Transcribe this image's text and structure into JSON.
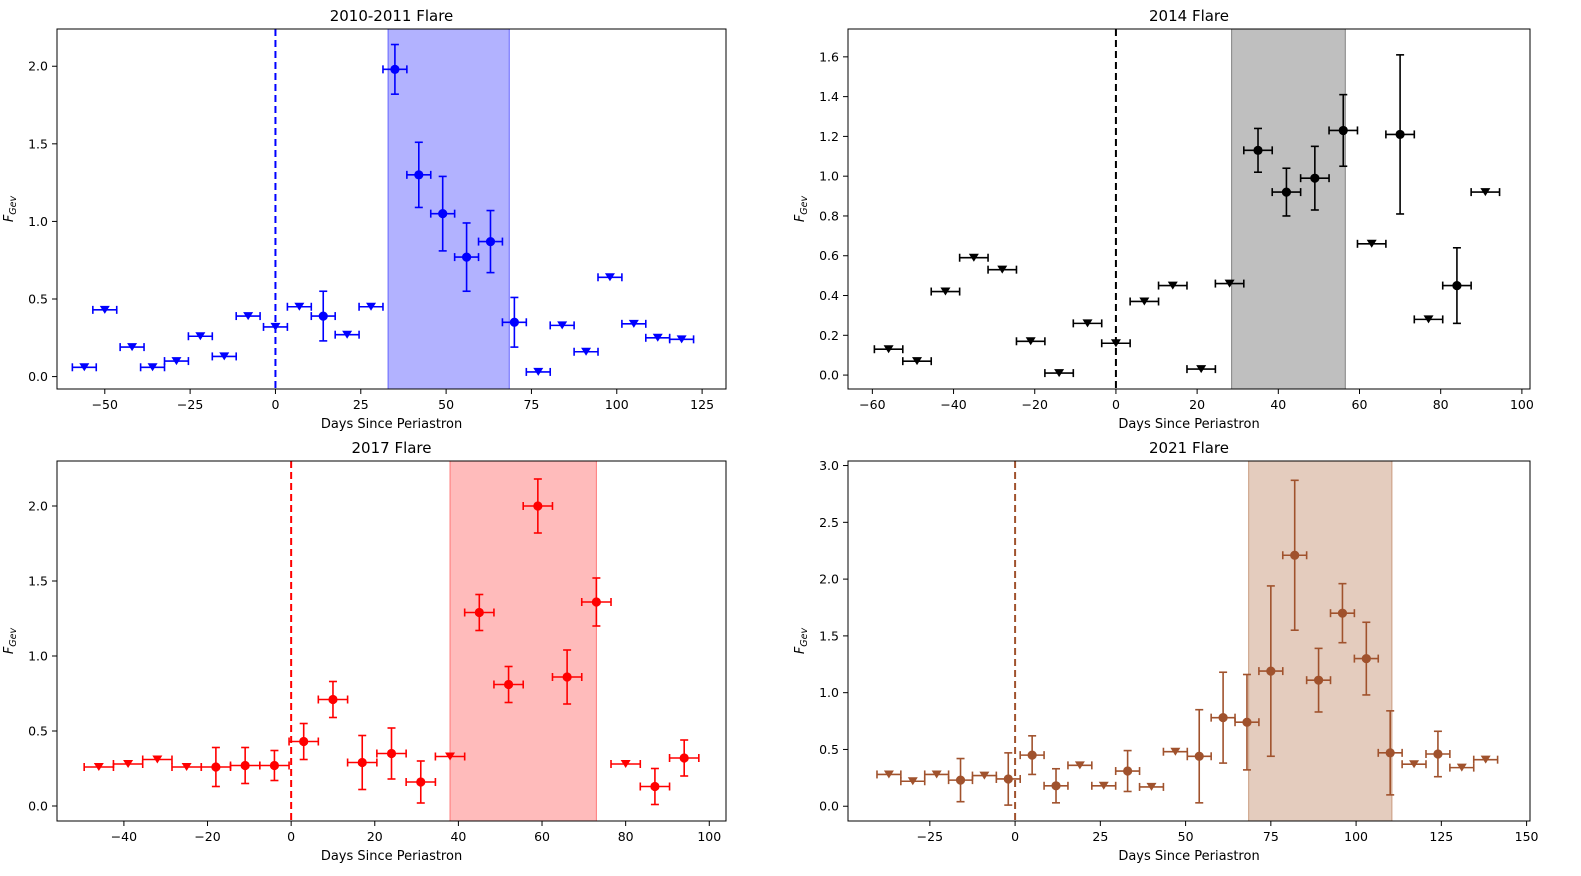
{
  "chart_data": [
    {
      "type": "scatter",
      "title": "2010-2011 Flare",
      "xlabel": "Days Since Periastron",
      "ylabel": "F_Gev",
      "color": "#0000ff",
      "shade_color": "#6666ff",
      "xlim": [
        -64,
        132
      ],
      "ylim": [
        -0.08,
        2.24
      ],
      "xticks": [
        -50,
        -25,
        0,
        25,
        50,
        75,
        100,
        125
      ],
      "xtick_labels": [
        "−50",
        "−25",
        "0",
        "25",
        "50",
        "75",
        "100",
        "125"
      ],
      "yticks": [
        0.0,
        0.5,
        1.0,
        1.5,
        2.0
      ],
      "ytick_labels": [
        "0.0",
        "0.5",
        "1.0",
        "1.5",
        "2.0"
      ],
      "periastron_line_x": 0,
      "flare_shade": [
        33,
        68.5
      ],
      "xerr": 3.5,
      "detections": [
        {
          "x": 35,
          "y": 1.98,
          "yerr": 0.16
        },
        {
          "x": 42,
          "y": 1.3,
          "yerr": 0.21
        },
        {
          "x": 49,
          "y": 1.05,
          "yerr": 0.24
        },
        {
          "x": 56,
          "y": 0.77,
          "yerr": 0.22
        },
        {
          "x": 63,
          "y": 0.87,
          "yerr": 0.2
        },
        {
          "x": 70,
          "y": 0.35,
          "yerr": 0.16
        },
        {
          "x": 14,
          "y": 0.39,
          "yerr": 0.16
        }
      ],
      "upper_limits": [
        {
          "x": -56,
          "y": 0.06
        },
        {
          "x": -50,
          "y": 0.43
        },
        {
          "x": -42,
          "y": 0.19
        },
        {
          "x": -36,
          "y": 0.06
        },
        {
          "x": -29,
          "y": 0.1
        },
        {
          "x": -22,
          "y": 0.26
        },
        {
          "x": -15,
          "y": 0.13
        },
        {
          "x": -8,
          "y": 0.39
        },
        {
          "x": 0,
          "y": 0.32
        },
        {
          "x": 7,
          "y": 0.45
        },
        {
          "x": 21,
          "y": 0.27
        },
        {
          "x": 28,
          "y": 0.45
        },
        {
          "x": 77,
          "y": 0.03
        },
        {
          "x": 84,
          "y": 0.33
        },
        {
          "x": 91,
          "y": 0.16
        },
        {
          "x": 98,
          "y": 0.64
        },
        {
          "x": 105,
          "y": 0.34
        },
        {
          "x": 112,
          "y": 0.25
        },
        {
          "x": 119,
          "y": 0.24
        }
      ]
    },
    {
      "type": "scatter",
      "title": "2014 Flare",
      "xlabel": "Days Since Periastron",
      "ylabel": "F_Gev",
      "color": "#000000",
      "shade_color": "#808080",
      "xlim": [
        -66,
        102
      ],
      "ylim": [
        -0.07,
        1.74
      ],
      "xticks": [
        -60,
        -40,
        -20,
        0,
        20,
        40,
        60,
        80,
        100
      ],
      "xtick_labels": [
        "−60",
        "−40",
        "−20",
        "0",
        "20",
        "40",
        "60",
        "80",
        "100"
      ],
      "yticks": [
        0.0,
        0.2,
        0.4,
        0.6,
        0.8,
        1.0,
        1.2,
        1.4,
        1.6
      ],
      "ytick_labels": [
        "0.0",
        "0.2",
        "0.4",
        "0.6",
        "0.8",
        "1.0",
        "1.2",
        "1.4",
        "1.6"
      ],
      "periastron_line_x": 0,
      "flare_shade": [
        28.5,
        56.5
      ],
      "xerr": 3.5,
      "detections": [
        {
          "x": 35,
          "y": 1.13,
          "yerr": 0.11
        },
        {
          "x": 42,
          "y": 0.92,
          "yerr": 0.12
        },
        {
          "x": 49,
          "y": 0.99,
          "yerr": 0.16
        },
        {
          "x": 56,
          "y": 1.23,
          "yerr": 0.18
        },
        {
          "x": 70,
          "y": 1.21,
          "yerr": 0.4
        },
        {
          "x": 84,
          "y": 0.45,
          "yerr": 0.19
        }
      ],
      "upper_limits": [
        {
          "x": -56,
          "y": 0.13
        },
        {
          "x": -49,
          "y": 0.07
        },
        {
          "x": -42,
          "y": 0.42
        },
        {
          "x": -35,
          "y": 0.59
        },
        {
          "x": -28,
          "y": 0.53
        },
        {
          "x": -21,
          "y": 0.17
        },
        {
          "x": -14,
          "y": 0.01
        },
        {
          "x": -7,
          "y": 0.26
        },
        {
          "x": 0,
          "y": 0.16
        },
        {
          "x": 7,
          "y": 0.37
        },
        {
          "x": 14,
          "y": 0.45
        },
        {
          "x": 21,
          "y": 0.03
        },
        {
          "x": 28,
          "y": 0.46
        },
        {
          "x": 63,
          "y": 0.66
        },
        {
          "x": 77,
          "y": 0.28
        },
        {
          "x": 91,
          "y": 0.92
        }
      ]
    },
    {
      "type": "scatter",
      "title": "2017 Flare",
      "xlabel": "Days Since Periastron",
      "ylabel": "F_Gev",
      "color": "#ff0000",
      "shade_color": "#ff7777",
      "xlim": [
        -56,
        104
      ],
      "ylim": [
        -0.1,
        2.3
      ],
      "xticks": [
        -40,
        -20,
        0,
        20,
        40,
        60,
        80,
        100
      ],
      "xtick_labels": [
        "−40",
        "−20",
        "0",
        "20",
        "40",
        "60",
        "80",
        "100"
      ],
      "yticks": [
        0.0,
        0.5,
        1.0,
        1.5,
        2.0
      ],
      "ytick_labels": [
        "0.0",
        "0.5",
        "1.0",
        "1.5",
        "2.0"
      ],
      "periastron_line_x": 0,
      "flare_shade": [
        38,
        73
      ],
      "xerr": 3.5,
      "detections": [
        {
          "x": -18,
          "y": 0.26,
          "yerr": 0.13
        },
        {
          "x": -11,
          "y": 0.27,
          "yerr": 0.12
        },
        {
          "x": -4,
          "y": 0.27,
          "yerr": 0.1
        },
        {
          "x": 3,
          "y": 0.43,
          "yerr": 0.12
        },
        {
          "x": 10,
          "y": 0.71,
          "yerr": 0.12
        },
        {
          "x": 17,
          "y": 0.29,
          "yerr": 0.18
        },
        {
          "x": 24,
          "y": 0.35,
          "yerr": 0.17
        },
        {
          "x": 31,
          "y": 0.16,
          "yerr": 0.14
        },
        {
          "x": 45,
          "y": 1.29,
          "yerr": 0.12
        },
        {
          "x": 52,
          "y": 0.81,
          "yerr": 0.12
        },
        {
          "x": 59,
          "y": 2.0,
          "yerr": 0.18
        },
        {
          "x": 66,
          "y": 0.86,
          "yerr": 0.18
        },
        {
          "x": 73,
          "y": 1.36,
          "yerr": 0.16
        },
        {
          "x": 87,
          "y": 0.13,
          "yerr": 0.12
        },
        {
          "x": 94,
          "y": 0.32,
          "yerr": 0.12
        }
      ],
      "upper_limits": [
        {
          "x": -46,
          "y": 0.26
        },
        {
          "x": -39,
          "y": 0.28
        },
        {
          "x": -32,
          "y": 0.31
        },
        {
          "x": -25,
          "y": 0.26
        },
        {
          "x": 38,
          "y": 0.33
        },
        {
          "x": 80,
          "y": 0.28
        }
      ]
    },
    {
      "type": "scatter",
      "title": "2021 Flare",
      "xlabel": "Days Since Periastron",
      "ylabel": "F_Gev",
      "color": "#a0522d",
      "shade_color": "#c99a7e",
      "xlim": [
        -49,
        151
      ],
      "ylim": [
        -0.13,
        3.04
      ],
      "xticks": [
        -25,
        0,
        25,
        50,
        75,
        100,
        125,
        150
      ],
      "xtick_labels": [
        "−25",
        "0",
        "25",
        "50",
        "75",
        "100",
        "125",
        "150"
      ],
      "yticks": [
        0.0,
        0.5,
        1.0,
        1.5,
        2.0,
        2.5,
        3.0
      ],
      "ytick_labels": [
        "0.0",
        "0.5",
        "1.0",
        "1.5",
        "2.0",
        "2.5",
        "3.0"
      ],
      "periastron_line_x": 0,
      "flare_shade": [
        68.5,
        110.5
      ],
      "xerr": 3.5,
      "detections": [
        {
          "x": -16,
          "y": 0.23,
          "yerr": 0.19
        },
        {
          "x": -2,
          "y": 0.24,
          "yerr": 0.23
        },
        {
          "x": 5,
          "y": 0.45,
          "yerr": 0.17
        },
        {
          "x": 12,
          "y": 0.18,
          "yerr": 0.15
        },
        {
          "x": 33,
          "y": 0.31,
          "yerr": 0.18
        },
        {
          "x": 54,
          "y": 0.44,
          "yerr": 0.41
        },
        {
          "x": 61,
          "y": 0.78,
          "yerr": 0.4
        },
        {
          "x": 68,
          "y": 0.74,
          "yerr": 0.42
        },
        {
          "x": 75,
          "y": 1.19,
          "yerr": 0.75
        },
        {
          "x": 82,
          "y": 2.21,
          "yerr": 0.66
        },
        {
          "x": 89,
          "y": 1.11,
          "yerr": 0.28
        },
        {
          "x": 96,
          "y": 1.7,
          "yerr": 0.26
        },
        {
          "x": 103,
          "y": 1.3,
          "yerr": 0.32
        },
        {
          "x": 110,
          "y": 0.47,
          "yerr": 0.37
        },
        {
          "x": 124,
          "y": 0.46,
          "yerr": 0.2
        }
      ],
      "upper_limits": [
        {
          "x": -37,
          "y": 0.28
        },
        {
          "x": -30,
          "y": 0.22
        },
        {
          "x": -23,
          "y": 0.28
        },
        {
          "x": -9,
          "y": 0.27
        },
        {
          "x": 19,
          "y": 0.36
        },
        {
          "x": 26,
          "y": 0.18
        },
        {
          "x": 40,
          "y": 0.17
        },
        {
          "x": 47,
          "y": 0.48
        },
        {
          "x": 117,
          "y": 0.37
        },
        {
          "x": 131,
          "y": 0.34
        },
        {
          "x": 138,
          "y": 0.41
        }
      ]
    }
  ]
}
